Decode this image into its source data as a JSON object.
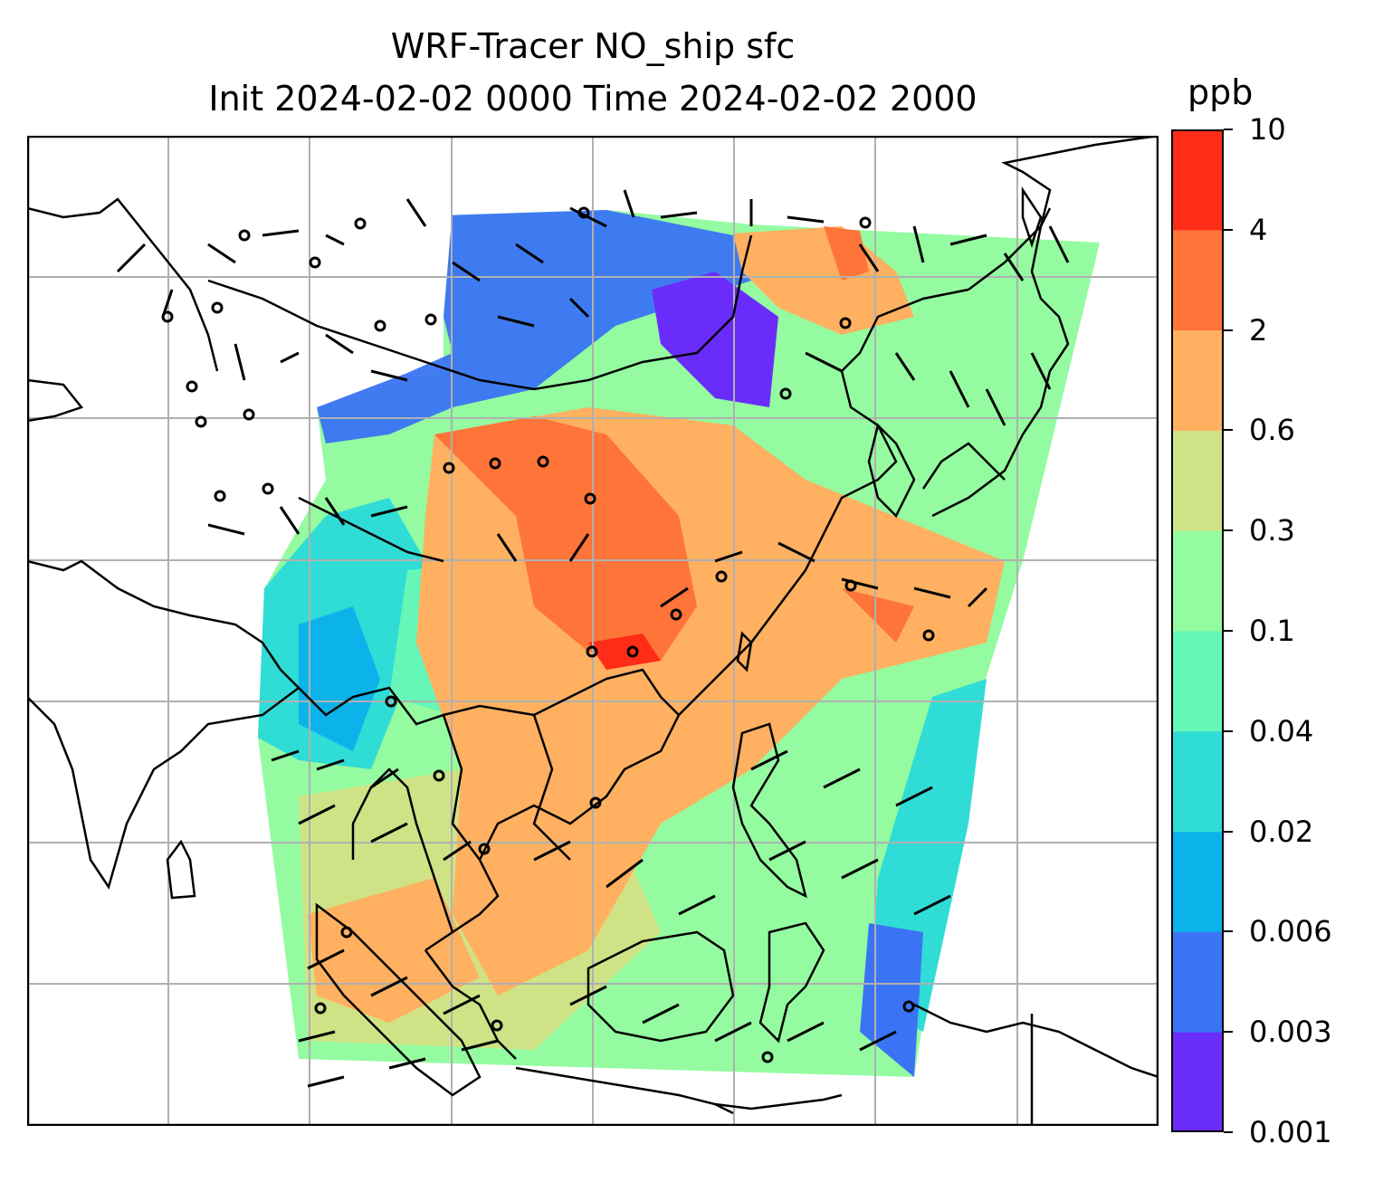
{
  "title_line1": "WRF-Tracer NO_ship sfc",
  "title_line2": "Init 2024-02-02 0000 Time 2024-02-02 2000",
  "colorbar": {
    "unit": "ppb",
    "ticks": [
      "0.001",
      "0.003",
      "0.006",
      "0.02",
      "0.04",
      "0.1",
      "0.3",
      "0.6",
      "2",
      "4",
      "10"
    ],
    "colors": [
      "#6a2cfb",
      "#3a74f4",
      "#0cb3ea",
      "#30dcd6",
      "#66f7b8",
      "#94fba0",
      "#cfe386",
      "#ffb060",
      "#ff7438",
      "#ff2c18"
    ]
  },
  "map": {
    "background": "#ffffff",
    "gridline_color": "#b0b0b0",
    "coastline_color": "#000000"
  }
}
